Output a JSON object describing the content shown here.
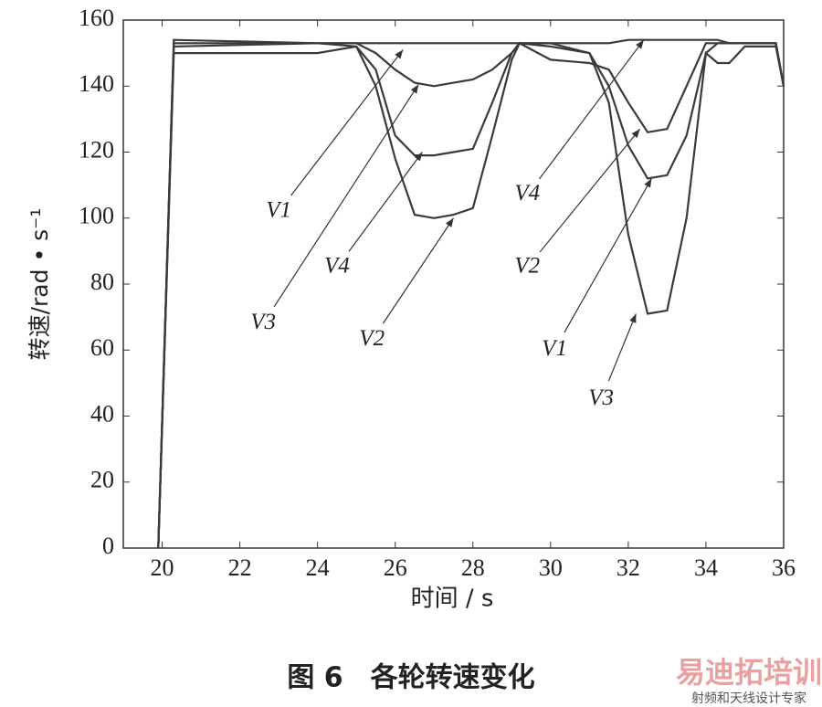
{
  "chart_data": {
    "type": "line",
    "xlabel": "时间 / s",
    "ylabel": "转速/rad • s⁻¹",
    "x": [
      19.9,
      20.3,
      24,
      25,
      25.5,
      26,
      26.5,
      27,
      27.5,
      28,
      28.5,
      29,
      29.2,
      30,
      31,
      31.5,
      32,
      32.5,
      33,
      33.5,
      34,
      34.3,
      34.6,
      35,
      35.8,
      36
    ],
    "series": [
      {
        "name": "V1",
        "color": "#3a3a3a",
        "values": [
          0,
          154,
          153,
          153,
          153,
          153,
          153,
          153,
          153,
          153,
          153,
          153,
          153,
          153,
          150,
          140,
          122,
          112,
          113,
          125,
          150,
          153,
          153,
          153,
          153,
          140
        ]
      },
      {
        "name": "V2",
        "color": "#3a3a3a",
        "values": [
          0,
          150,
          150,
          152,
          140,
          118,
          101,
          100,
          101,
          103,
          125,
          148,
          153,
          148,
          147,
          145,
          135,
          126,
          127,
          140,
          153,
          153,
          153,
          153,
          153,
          140
        ]
      },
      {
        "name": "V3",
        "color": "#3a3a3a",
        "values": [
          0,
          152,
          153,
          153,
          150,
          145,
          141,
          140,
          141,
          142,
          145,
          150,
          153,
          152,
          150,
          135,
          95,
          71,
          72,
          100,
          150,
          147,
          147,
          152,
          152,
          140
        ]
      },
      {
        "name": "V4",
        "color": "#3a3a3a",
        "values": [
          0,
          153,
          153,
          152,
          145,
          125,
          119,
          119,
          120,
          121,
          135,
          150,
          153,
          153,
          153,
          153,
          154,
          154,
          154,
          154,
          154,
          154,
          153,
          153,
          153,
          140
        ]
      }
    ],
    "annotations": [
      {
        "text": "V1",
        "xytext": [
          23.0,
          102
        ],
        "xy": [
          26.2,
          151
        ]
      },
      {
        "text": "V3",
        "xytext": [
          22.6,
          68
        ],
        "xy": [
          26.6,
          140.5
        ]
      },
      {
        "text": "V4",
        "xytext": [
          24.5,
          85
        ],
        "xy": [
          26.7,
          120
        ]
      },
      {
        "text": "V2",
        "xytext": [
          25.4,
          63
        ],
        "xy": [
          27.5,
          100
        ]
      },
      {
        "text": "V4",
        "xytext": [
          29.4,
          107
        ],
        "xy": [
          32.4,
          154
        ]
      },
      {
        "text": "V2",
        "xytext": [
          29.4,
          85
        ],
        "xy": [
          32.3,
          127
        ]
      },
      {
        "text": "V1",
        "xytext": [
          30.1,
          60
        ],
        "xy": [
          32.6,
          112
        ]
      },
      {
        "text": "V3",
        "xytext": [
          31.3,
          45
        ],
        "xy": [
          32.2,
          71
        ]
      }
    ],
    "xlim": [
      19,
      36
    ],
    "xticks": [
      20,
      22,
      24,
      26,
      28,
      30,
      32,
      34,
      36
    ],
    "ylim": [
      0,
      160
    ],
    "yticks": [
      0,
      20,
      40,
      60,
      80,
      100,
      120,
      140,
      160
    ],
    "grid": false
  },
  "caption": "图 6　各轮转速变化",
  "watermark": {
    "brand": "易迪拓培训",
    "slogan": "射频和天线设计专家"
  }
}
